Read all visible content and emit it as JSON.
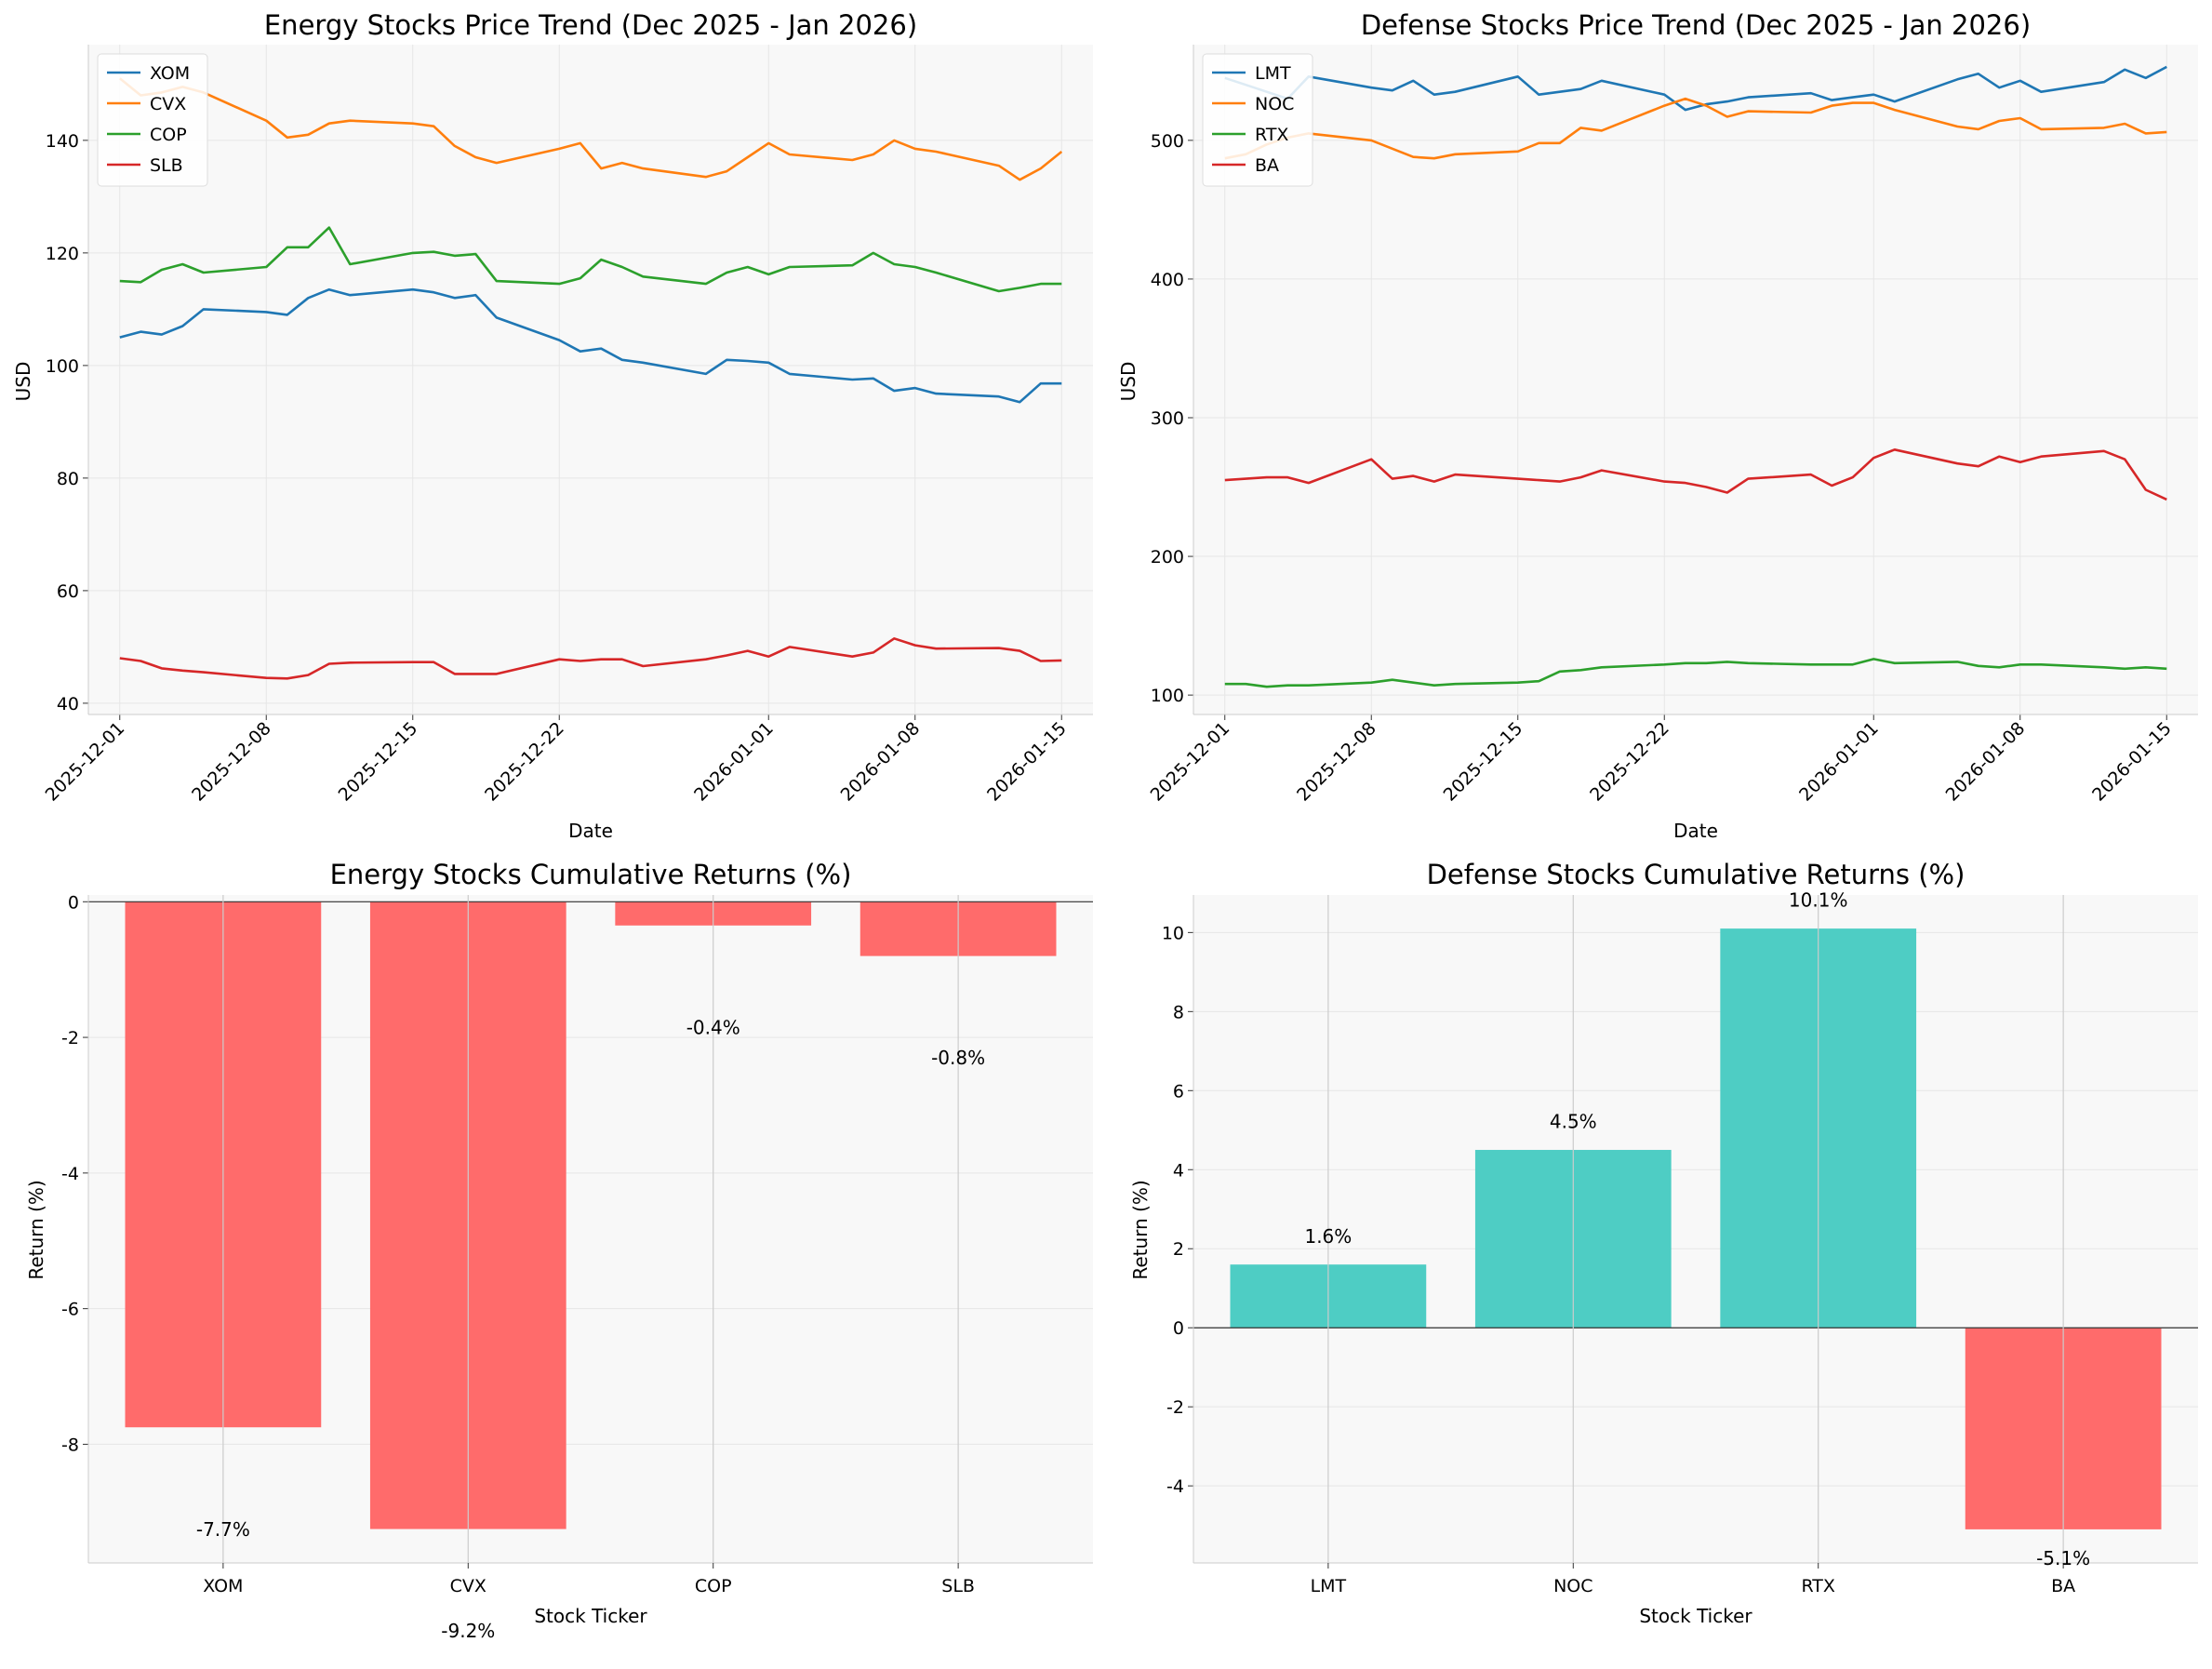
{
  "chart_data": [
    {
      "id": "energy-price",
      "type": "line",
      "title": "Energy Stocks Price Trend (Dec 2025 - Jan 2026)",
      "xlabel": "Date",
      "ylabel": "USD",
      "ylim": [
        38,
        157
      ],
      "yticks": [
        40,
        60,
        80,
        100,
        120,
        140
      ],
      "xlim": [
        -1.5,
        46.5
      ],
      "xticks": [
        {
          "pos": 0,
          "label": "2025-12-01"
        },
        {
          "pos": 7,
          "label": "2025-12-08"
        },
        {
          "pos": 14,
          "label": "2025-12-15"
        },
        {
          "pos": 21,
          "label": "2025-12-22"
        },
        {
          "pos": 31,
          "label": "2026-01-01"
        },
        {
          "pos": 38,
          "label": "2026-01-08"
        },
        {
          "pos": 45,
          "label": "2026-01-15"
        }
      ],
      "x": [
        0,
        1,
        2,
        3,
        4,
        7,
        8,
        9,
        10,
        11,
        14,
        15,
        16,
        17,
        18,
        21,
        22,
        23,
        24,
        25,
        28,
        29,
        30,
        31,
        32,
        35,
        36,
        37,
        38,
        39,
        42,
        43,
        44,
        45
      ],
      "series": [
        {
          "name": "XOM",
          "color": "#1f77b4",
          "values": [
            105,
            106,
            105.5,
            107,
            110,
            109.5,
            109,
            112,
            113.5,
            112.5,
            113.5,
            113,
            112,
            112.5,
            108.5,
            104.5,
            102.5,
            103,
            101,
            100.5,
            98.5,
            101,
            100.8,
            100.5,
            98.5,
            97.5,
            97.7,
            95.5,
            96,
            95,
            94.5,
            93.5,
            96.8,
            96.8
          ]
        },
        {
          "name": "CVX",
          "color": "#ff7f0e",
          "values": [
            151,
            148,
            148.5,
            149.5,
            148.5,
            143.5,
            140.5,
            141,
            143,
            143.5,
            143,
            142.5,
            139,
            137,
            136,
            138.5,
            139.5,
            135,
            136,
            135,
            133.5,
            134.5,
            137,
            139.5,
            137.5,
            136.5,
            137.5,
            140,
            138.5,
            138,
            135.5,
            133,
            135,
            138
          ]
        },
        {
          "name": "COP",
          "color": "#2ca02c",
          "values": [
            115,
            114.8,
            117,
            118,
            116.5,
            117.5,
            121,
            121,
            124.5,
            118,
            120,
            120.2,
            119.5,
            119.8,
            115,
            114.5,
            115.5,
            118.8,
            117.5,
            115.8,
            114.5,
            116.5,
            117.5,
            116.2,
            117.5,
            117.8,
            120,
            118,
            117.5,
            116.5,
            113.2,
            113.8,
            114.5,
            114.5
          ]
        },
        {
          "name": "SLB",
          "color": "#d62728",
          "values": [
            48,
            47.5,
            46.2,
            45.8,
            45.5,
            44.5,
            44.4,
            45,
            47,
            47.2,
            47.3,
            47.3,
            45.2,
            45.2,
            45.2,
            47.8,
            47.5,
            47.8,
            47.8,
            46.6,
            47.8,
            48.5,
            49.3,
            48.3,
            50,
            48.3,
            49,
            51.5,
            50.3,
            49.7,
            49.8,
            49.3,
            47.5,
            47.6
          ]
        }
      ]
    },
    {
      "id": "defense-price",
      "type": "line",
      "title": "Defense Stocks Price Trend (Dec 2025 - Jan 2026)",
      "xlabel": "Date",
      "ylabel": "USD",
      "ylim": [
        86,
        569
      ],
      "yticks": [
        100,
        200,
        300,
        400,
        500
      ],
      "xlim": [
        -1.5,
        46.5
      ],
      "xticks": [
        {
          "pos": 0,
          "label": "2025-12-01"
        },
        {
          "pos": 7,
          "label": "2025-12-08"
        },
        {
          "pos": 14,
          "label": "2025-12-15"
        },
        {
          "pos": 21,
          "label": "2025-12-22"
        },
        {
          "pos": 31,
          "label": "2026-01-01"
        },
        {
          "pos": 38,
          "label": "2026-01-08"
        },
        {
          "pos": 45,
          "label": "2026-01-15"
        }
      ],
      "x": [
        0,
        1,
        2,
        3,
        4,
        7,
        8,
        9,
        10,
        11,
        14,
        15,
        16,
        17,
        18,
        21,
        22,
        23,
        24,
        25,
        28,
        29,
        30,
        31,
        32,
        35,
        36,
        37,
        38,
        39,
        42,
        43,
        44,
        45
      ],
      "series": [
        {
          "name": "LMT",
          "color": "#1f77b4",
          "values": [
            545,
            540,
            535,
            530,
            546,
            538,
            536,
            543,
            533,
            535,
            546,
            533,
            535,
            537,
            543,
            533,
            522,
            526,
            528,
            531,
            534,
            529,
            531,
            533,
            528,
            544,
            548,
            538,
            543,
            535,
            542,
            551,
            545,
            553
          ]
        },
        {
          "name": "NOC",
          "color": "#ff7f0e",
          "values": [
            487,
            490,
            497,
            502,
            505,
            500,
            494,
            488,
            487,
            490,
            492,
            498,
            498,
            509,
            507,
            525,
            530,
            525,
            517,
            521,
            520,
            525,
            527,
            527,
            522,
            510,
            508,
            514,
            516,
            508,
            509,
            512,
            505,
            506
          ]
        },
        {
          "name": "RTX",
          "color": "#2ca02c",
          "values": [
            108,
            108,
            106,
            107,
            107,
            109,
            111,
            109,
            107,
            108,
            109,
            110,
            117,
            118,
            120,
            122,
            123,
            123,
            124,
            123,
            122,
            122,
            122,
            126,
            123,
            124,
            121,
            120,
            122,
            122,
            120,
            119,
            120,
            119
          ]
        },
        {
          "name": "BA",
          "color": "#d62728",
          "values": [
            255,
            256,
            257,
            257,
            253,
            270,
            256,
            258,
            254,
            259,
            256,
            255,
            254,
            257,
            262,
            254,
            253,
            250,
            246,
            256,
            259,
            251,
            257,
            271,
            277,
            267,
            265,
            272,
            268,
            272,
            276,
            270,
            248,
            241
          ]
        }
      ]
    },
    {
      "id": "energy-returns",
      "type": "bar",
      "title": "Energy Stocks Cumulative Returns (%)",
      "xlabel": "Stock Ticker",
      "ylabel": "Return (%)",
      "ylim": [
        -9.75,
        0.1
      ],
      "yticks": [
        0,
        -2,
        -4,
        -6,
        -8
      ],
      "categories": [
        "XOM",
        "CVX",
        "COP",
        "SLB"
      ],
      "values": [
        -7.75,
        -9.25,
        -0.35,
        -0.8
      ],
      "labels": [
        "-7.7%",
        "-9.2%",
        "-0.4%",
        "-0.8%"
      ],
      "label_offset": -1.6,
      "pos_color": "#4ecdc4",
      "neg_color": "#ff6b6b"
    },
    {
      "id": "defense-returns",
      "type": "bar",
      "title": "Defense Stocks Cumulative Returns (%)",
      "xlabel": "Stock Ticker",
      "ylabel": "Return (%)",
      "ylim": [
        -5.95,
        10.95
      ],
      "yticks": [
        -4,
        -2,
        0,
        2,
        4,
        6,
        8,
        10
      ],
      "categories": [
        "LMT",
        "NOC",
        "RTX",
        "BA"
      ],
      "values": [
        1.6,
        4.5,
        10.1,
        -5.1
      ],
      "labels": [
        "1.6%",
        "4.5%",
        "10.1%",
        "-5.1%"
      ],
      "label_offset": 0.55,
      "pos_color": "#4ecdc4",
      "neg_color": "#ff6b6b"
    }
  ]
}
